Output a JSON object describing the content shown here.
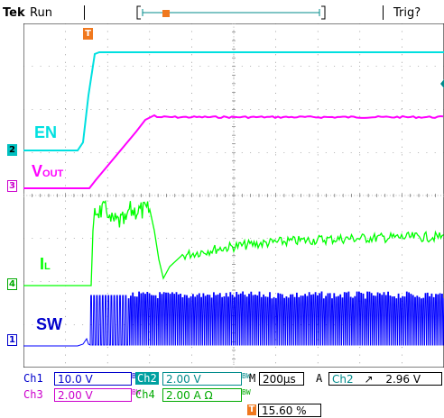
{
  "header": {
    "brand": "Tek",
    "status": "Run",
    "trigger_status": "Trig?",
    "record_bar_color": "#008b8b",
    "trigger_marker_color": "#f0781e"
  },
  "channels": {
    "en": {
      "label": "EN",
      "marker": "2",
      "color": "#00e0e0"
    },
    "vout": {
      "label_main": "V",
      "label_sub": "OUT",
      "marker": "3",
      "color": "#ff00ff"
    },
    "il": {
      "label_main": "I",
      "label_sub": "L",
      "marker": "4",
      "color": "#00ff00"
    },
    "sw": {
      "label": "SW",
      "marker": "1",
      "color": "#0000ff"
    }
  },
  "trigger_point_marker": "T",
  "readout": {
    "ch1": {
      "name": "Ch1",
      "scale": "10.0 V",
      "bw": "BW"
    },
    "ch2": {
      "name": "Ch2",
      "scale": "2.00 V",
      "bw": "BW"
    },
    "ch3": {
      "name": "Ch3",
      "scale": "2.00 V",
      "bw": "BW"
    },
    "ch4": {
      "name": "Ch4",
      "scale": "2.00 A Ω",
      "bw": "BW"
    },
    "timebase": {
      "prefix": "M",
      "value": "200µs"
    },
    "trigger": {
      "mode": "A",
      "source": "Ch2",
      "slope": "↗",
      "level": "2.96 V"
    },
    "position": {
      "marker": "T",
      "value": "15.60 %"
    }
  }
}
